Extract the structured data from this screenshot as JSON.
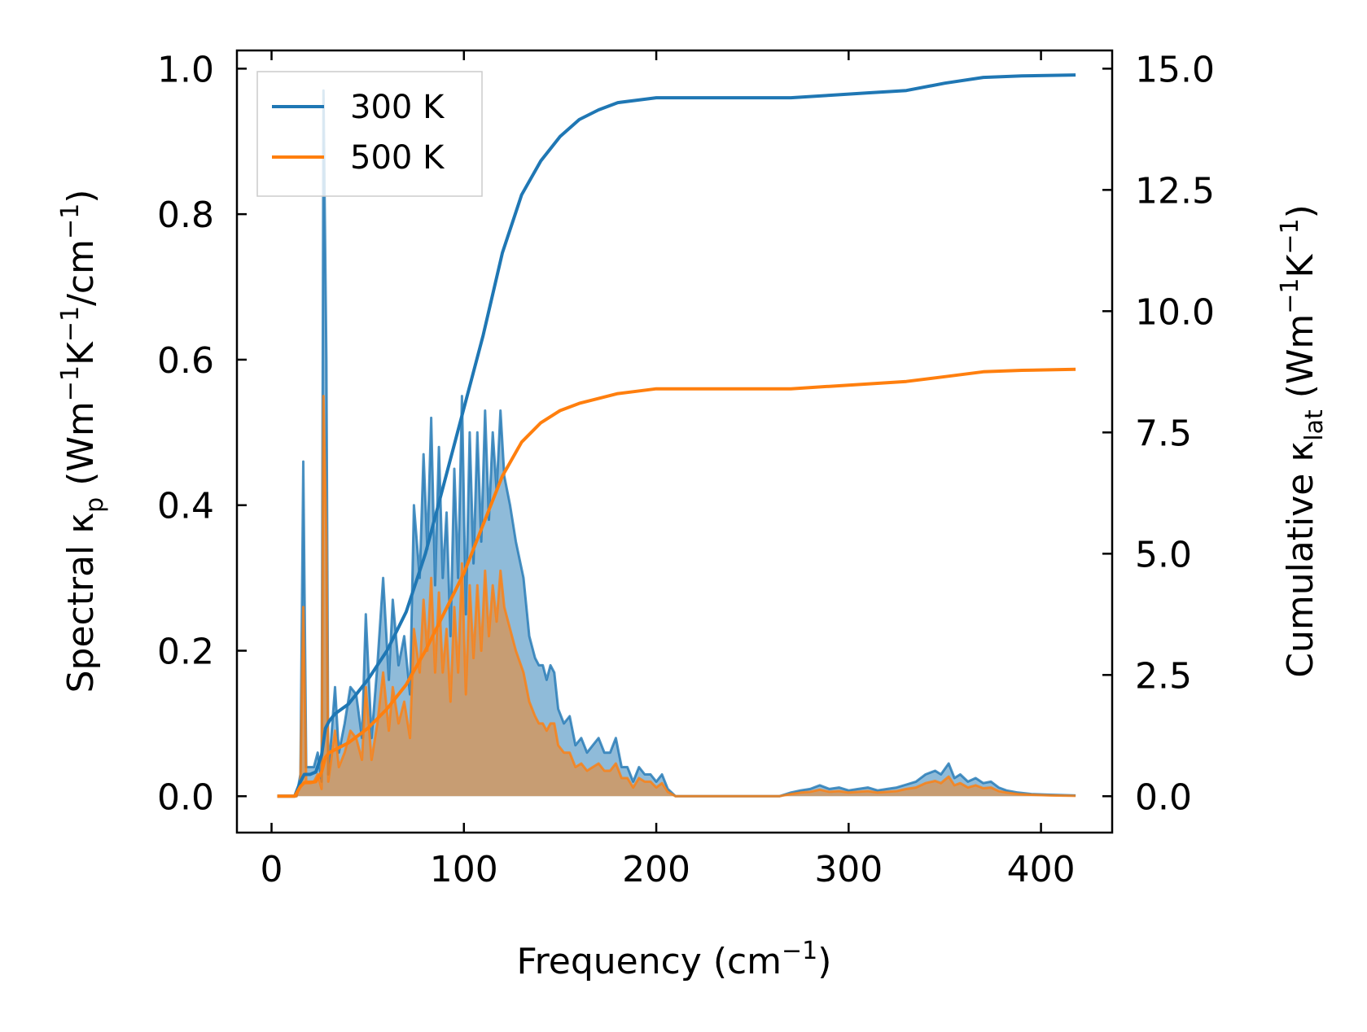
{
  "chart_data": {
    "type": "line",
    "title": "",
    "xlabel": "Frequency (cm",
    "xlabel_sup": "−1",
    "xlabel_end": ")",
    "ylabel_left": {
      "prefix": "Spectral κ",
      "sub": "p",
      "mid1": " (Wm",
      "sup1": "−1",
      "mid2": "K",
      "sup2": "−1",
      "mid3": "/cm",
      "sup3": "−1",
      "end": ")"
    },
    "ylabel_right": {
      "prefix": "Cumulative κ",
      "sub": "lat",
      "mid1": " (Wm",
      "sup1": "−1",
      "mid2": "K",
      "sup2": "−1",
      "end": ")"
    },
    "xlim": [
      -18,
      437
    ],
    "ylim_left": [
      -0.05,
      1.025
    ],
    "ylim_right": [
      -0.75,
      15.375
    ],
    "x_ticks": [
      0,
      100,
      200,
      300,
      400
    ],
    "x_tick_labels": [
      "0",
      "100",
      "200",
      "300",
      "400"
    ],
    "y_left_ticks": [
      0.0,
      0.2,
      0.4,
      0.6,
      0.8,
      1.0
    ],
    "y_left_tick_labels": [
      "0.0",
      "0.2",
      "0.4",
      "0.6",
      "0.8",
      "1.0"
    ],
    "y_right_ticks": [
      0.0,
      2.5,
      5.0,
      7.5,
      10.0,
      12.5,
      15.0
    ],
    "y_right_tick_labels": [
      "0.0",
      "2.5",
      "5.0",
      "7.5",
      "10.0",
      "12.5",
      "15.0"
    ],
    "legend_position": "top-left",
    "series": [
      {
        "name": "300 K",
        "color": "#1f77b4",
        "spectral": [
          [
            3,
            0
          ],
          [
            13,
            0
          ],
          [
            15,
            0.03
          ],
          [
            16.5,
            0.46
          ],
          [
            18,
            0.04
          ],
          [
            22,
            0.04
          ],
          [
            24,
            0.06
          ],
          [
            26,
            0.02
          ],
          [
            27,
            0.97
          ],
          [
            28.5,
            0.6
          ],
          [
            29.5,
            0.03
          ],
          [
            31,
            0.08
          ],
          [
            33,
            0.15
          ],
          [
            35,
            0.06
          ],
          [
            38,
            0.1
          ],
          [
            41,
            0.15
          ],
          [
            44,
            0.14
          ],
          [
            47,
            0.08
          ],
          [
            49,
            0.25
          ],
          [
            52,
            0.08
          ],
          [
            55,
            0.18
          ],
          [
            58,
            0.3
          ],
          [
            61,
            0.16
          ],
          [
            63,
            0.27
          ],
          [
            66,
            0.18
          ],
          [
            69,
            0.22
          ],
          [
            72,
            0.14
          ],
          [
            74,
            0.4
          ],
          [
            77,
            0.3
          ],
          [
            79,
            0.47
          ],
          [
            81,
            0.34
          ],
          [
            83,
            0.52
          ],
          [
            85,
            0.29
          ],
          [
            87,
            0.48
          ],
          [
            89,
            0.3
          ],
          [
            91,
            0.39
          ],
          [
            93,
            0.22
          ],
          [
            95,
            0.45
          ],
          [
            97,
            0.3
          ],
          [
            99,
            0.55
          ],
          [
            101,
            0.25
          ],
          [
            103,
            0.5
          ],
          [
            105,
            0.32
          ],
          [
            107,
            0.5
          ],
          [
            109,
            0.35
          ],
          [
            111,
            0.53
          ],
          [
            113,
            0.38
          ],
          [
            115,
            0.5
          ],
          [
            117,
            0.42
          ],
          [
            119,
            0.53
          ],
          [
            121,
            0.44
          ],
          [
            124,
            0.4
          ],
          [
            127,
            0.35
          ],
          [
            131,
            0.3
          ],
          [
            134,
            0.22
          ],
          [
            137,
            0.19
          ],
          [
            139,
            0.18
          ],
          [
            141,
            0.18
          ],
          [
            143,
            0.16
          ],
          [
            145,
            0.18
          ],
          [
            147,
            0.17
          ],
          [
            149,
            0.12
          ],
          [
            152,
            0.1
          ],
          [
            155,
            0.11
          ],
          [
            158,
            0.07
          ],
          [
            161,
            0.08
          ],
          [
            164,
            0.06
          ],
          [
            167,
            0.07
          ],
          [
            170,
            0.08
          ],
          [
            173,
            0.06
          ],
          [
            176,
            0.06
          ],
          [
            179,
            0.08
          ],
          [
            182,
            0.04
          ],
          [
            185,
            0.04
          ],
          [
            188,
            0.02
          ],
          [
            191,
            0.04
          ],
          [
            194,
            0.03
          ],
          [
            197,
            0.03
          ],
          [
            200,
            0.02
          ],
          [
            203,
            0.03
          ],
          [
            206,
            0.01
          ],
          [
            210,
            0.0
          ],
          [
            220,
            0
          ],
          [
            240,
            0
          ],
          [
            264,
            0
          ],
          [
            270,
            0.005
          ],
          [
            275,
            0.008
          ],
          [
            280,
            0.01
          ],
          [
            285,
            0.015
          ],
          [
            290,
            0.01
          ],
          [
            295,
            0.012
          ],
          [
            300,
            0.008
          ],
          [
            305,
            0.01
          ],
          [
            310,
            0.012
          ],
          [
            315,
            0.008
          ],
          [
            320,
            0.01
          ],
          [
            325,
            0.012
          ],
          [
            330,
            0.016
          ],
          [
            335,
            0.02
          ],
          [
            340,
            0.03
          ],
          [
            345,
            0.035
          ],
          [
            348,
            0.03
          ],
          [
            352,
            0.045
          ],
          [
            355,
            0.025
          ],
          [
            358,
            0.03
          ],
          [
            362,
            0.02
          ],
          [
            366,
            0.025
          ],
          [
            370,
            0.018
          ],
          [
            374,
            0.02
          ],
          [
            378,
            0.012
          ],
          [
            382,
            0.008
          ],
          [
            388,
            0.005
          ],
          [
            395,
            0.003
          ],
          [
            405,
            0.002
          ],
          [
            418,
            0.001
          ]
        ],
        "cumulative": [
          [
            3,
            0
          ],
          [
            12,
            0
          ],
          [
            15,
            0.3
          ],
          [
            17,
            0.45
          ],
          [
            20,
            0.45
          ],
          [
            23,
            0.5
          ],
          [
            26,
            0.85
          ],
          [
            28,
            1.4
          ],
          [
            30,
            1.55
          ],
          [
            33,
            1.7
          ],
          [
            40,
            1.9
          ],
          [
            50,
            2.4
          ],
          [
            60,
            3.0
          ],
          [
            70,
            3.8
          ],
          [
            80,
            5.0
          ],
          [
            90,
            6.5
          ],
          [
            100,
            8.0
          ],
          [
            110,
            9.5
          ],
          [
            120,
            11.2
          ],
          [
            130,
            12.4
          ],
          [
            140,
            13.1
          ],
          [
            150,
            13.6
          ],
          [
            160,
            13.95
          ],
          [
            170,
            14.15
          ],
          [
            180,
            14.3
          ],
          [
            190,
            14.35
          ],
          [
            200,
            14.4
          ],
          [
            220,
            14.4
          ],
          [
            250,
            14.4
          ],
          [
            270,
            14.4
          ],
          [
            290,
            14.45
          ],
          [
            310,
            14.5
          ],
          [
            330,
            14.55
          ],
          [
            350,
            14.7
          ],
          [
            370,
            14.82
          ],
          [
            390,
            14.85
          ],
          [
            418,
            14.87
          ]
        ]
      },
      {
        "name": "500 K",
        "color": "#ff7f0e",
        "spectral": [
          [
            3,
            0
          ],
          [
            13,
            0
          ],
          [
            15,
            0.02
          ],
          [
            16.5,
            0.26
          ],
          [
            18,
            0.02
          ],
          [
            22,
            0.02
          ],
          [
            24,
            0.03
          ],
          [
            26,
            0.01
          ],
          [
            27,
            0.55
          ],
          [
            28.5,
            0.35
          ],
          [
            29.5,
            0.02
          ],
          [
            31,
            0.05
          ],
          [
            33,
            0.09
          ],
          [
            35,
            0.04
          ],
          [
            38,
            0.06
          ],
          [
            41,
            0.09
          ],
          [
            44,
            0.08
          ],
          [
            47,
            0.05
          ],
          [
            49,
            0.15
          ],
          [
            52,
            0.05
          ],
          [
            55,
            0.1
          ],
          [
            58,
            0.17
          ],
          [
            61,
            0.09
          ],
          [
            63,
            0.15
          ],
          [
            66,
            0.1
          ],
          [
            69,
            0.13
          ],
          [
            72,
            0.08
          ],
          [
            74,
            0.23
          ],
          [
            77,
            0.17
          ],
          [
            79,
            0.27
          ],
          [
            81,
            0.2
          ],
          [
            83,
            0.3
          ],
          [
            85,
            0.17
          ],
          [
            87,
            0.28
          ],
          [
            89,
            0.17
          ],
          [
            91,
            0.23
          ],
          [
            93,
            0.13
          ],
          [
            95,
            0.26
          ],
          [
            97,
            0.17
          ],
          [
            99,
            0.32
          ],
          [
            101,
            0.14
          ],
          [
            103,
            0.29
          ],
          [
            105,
            0.19
          ],
          [
            107,
            0.29
          ],
          [
            109,
            0.2
          ],
          [
            111,
            0.31
          ],
          [
            113,
            0.22
          ],
          [
            115,
            0.29
          ],
          [
            117,
            0.24
          ],
          [
            119,
            0.31
          ],
          [
            121,
            0.26
          ],
          [
            124,
            0.23
          ],
          [
            127,
            0.2
          ],
          [
            131,
            0.17
          ],
          [
            134,
            0.13
          ],
          [
            137,
            0.11
          ],
          [
            139,
            0.1
          ],
          [
            141,
            0.1
          ],
          [
            143,
            0.09
          ],
          [
            145,
            0.1
          ],
          [
            147,
            0.1
          ],
          [
            149,
            0.07
          ],
          [
            152,
            0.06
          ],
          [
            155,
            0.06
          ],
          [
            158,
            0.04
          ],
          [
            161,
            0.045
          ],
          [
            164,
            0.035
          ],
          [
            167,
            0.04
          ],
          [
            170,
            0.045
          ],
          [
            173,
            0.035
          ],
          [
            176,
            0.035
          ],
          [
            179,
            0.045
          ],
          [
            182,
            0.025
          ],
          [
            185,
            0.025
          ],
          [
            188,
            0.012
          ],
          [
            191,
            0.025
          ],
          [
            194,
            0.02
          ],
          [
            197,
            0.02
          ],
          [
            200,
            0.012
          ],
          [
            203,
            0.018
          ],
          [
            206,
            0.006
          ],
          [
            210,
            0.0
          ],
          [
            220,
            0
          ],
          [
            240,
            0
          ],
          [
            264,
            0
          ],
          [
            270,
            0.003
          ],
          [
            275,
            0.005
          ],
          [
            280,
            0.006
          ],
          [
            285,
            0.009
          ],
          [
            290,
            0.006
          ],
          [
            295,
            0.007
          ],
          [
            300,
            0.005
          ],
          [
            305,
            0.006
          ],
          [
            310,
            0.007
          ],
          [
            315,
            0.005
          ],
          [
            320,
            0.006
          ],
          [
            325,
            0.007
          ],
          [
            330,
            0.01
          ],
          [
            335,
            0.012
          ],
          [
            340,
            0.018
          ],
          [
            345,
            0.021
          ],
          [
            348,
            0.018
          ],
          [
            352,
            0.027
          ],
          [
            355,
            0.015
          ],
          [
            358,
            0.018
          ],
          [
            362,
            0.012
          ],
          [
            366,
            0.015
          ],
          [
            370,
            0.011
          ],
          [
            374,
            0.012
          ],
          [
            378,
            0.007
          ],
          [
            382,
            0.005
          ],
          [
            388,
            0.003
          ],
          [
            395,
            0.002
          ],
          [
            405,
            0.001
          ],
          [
            418,
            0.0005
          ]
        ],
        "cumulative": [
          [
            3,
            0
          ],
          [
            12,
            0
          ],
          [
            15,
            0.2
          ],
          [
            17,
            0.28
          ],
          [
            20,
            0.28
          ],
          [
            23,
            0.3
          ],
          [
            26,
            0.5
          ],
          [
            28,
            0.8
          ],
          [
            30,
            0.9
          ],
          [
            35,
            1.0
          ],
          [
            40,
            1.1
          ],
          [
            50,
            1.4
          ],
          [
            60,
            1.8
          ],
          [
            70,
            2.3
          ],
          [
            80,
            3.0
          ],
          [
            90,
            3.8
          ],
          [
            100,
            4.6
          ],
          [
            110,
            5.6
          ],
          [
            120,
            6.6
          ],
          [
            130,
            7.3
          ],
          [
            140,
            7.7
          ],
          [
            150,
            7.95
          ],
          [
            160,
            8.1
          ],
          [
            170,
            8.2
          ],
          [
            180,
            8.3
          ],
          [
            190,
            8.35
          ],
          [
            200,
            8.4
          ],
          [
            220,
            8.4
          ],
          [
            250,
            8.4
          ],
          [
            270,
            8.4
          ],
          [
            290,
            8.45
          ],
          [
            310,
            8.5
          ],
          [
            330,
            8.55
          ],
          [
            350,
            8.65
          ],
          [
            370,
            8.75
          ],
          [
            390,
            8.78
          ],
          [
            418,
            8.8
          ]
        ]
      }
    ]
  }
}
